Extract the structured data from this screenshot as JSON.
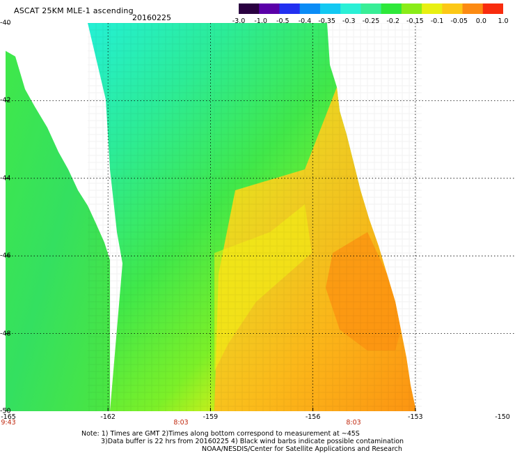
{
  "header": {
    "title": "ASCAT 25KM MLE-1 ascending",
    "date": "20160225"
  },
  "colorbar": {
    "colors": [
      "#2a0040",
      "#5a00a8",
      "#2230f0",
      "#0a8cf6",
      "#12c8f2",
      "#2af0d6",
      "#38ee96",
      "#2ee83a",
      "#8aec18",
      "#e8f012",
      "#fcc816",
      "#fc8a12",
      "#f82c0e"
    ],
    "tick_labels": [
      "-3.0",
      "-1.0",
      "-0.5",
      "-0.4",
      "-0.35",
      "-0.3",
      "-0.25",
      "-0.2",
      "-0.15",
      "-0.1",
      "-0.05",
      "0.0",
      "1.0"
    ]
  },
  "map": {
    "lon_labels": [
      "-165",
      "-162",
      "-159",
      "-156",
      "-153",
      "-150"
    ],
    "lat_labels": [
      "-40",
      "-42",
      "-44",
      "-46",
      "-48",
      "-50"
    ],
    "time_labels": [
      "9:43",
      "8:03",
      "8:03"
    ],
    "swath_palette": {
      "cyan": "#24f0d6",
      "teal": "#2cec98",
      "green": "#40e84a",
      "lime": "#7cf028",
      "yellow": "#f2f014",
      "gold": "#fcc820",
      "orange": "#fc9010"
    }
  },
  "notes": [
    "Note: 1) Times are GMT 2)Times along bottom correspond to measurement at ~45S",
    "3)Data buffer is 22 hrs from 20160225 4) Black wind barbs indicate possible contamination",
    "NOAA/NESDIS/Center for Satellite Applications and Research"
  ]
}
